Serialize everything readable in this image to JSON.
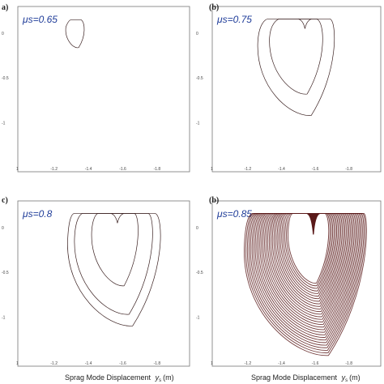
{
  "figure": {
    "xlabel": "Sprag Mode Displacement",
    "xlabel_symbol": "y",
    "xlabel_subscript": "s",
    "xlabel_unit": "(m)"
  },
  "colors": {
    "frame": "#777777",
    "curve": "#3a2020",
    "dense": "#5a1a1a",
    "mu_label": "#1f3c99"
  },
  "chart_data": [
    {
      "type": "line",
      "panel": "a)",
      "annotation": "μs=0.65",
      "xlim": [
        1.0,
        2.0
      ],
      "ylim": [
        -1.55,
        0.3
      ],
      "xticks": [
        "1",
        "-1.2",
        "-1.4",
        "-1.6",
        "-1.8"
      ],
      "yticks": [
        "0",
        "-0.5",
        "-1"
      ],
      "loops": [
        {
          "cx": 1.33,
          "top": 0.15,
          "bottom": -0.16,
          "left": 1.28,
          "right": 1.39,
          "flat_top": [
            1.31,
            1.37
          ]
        }
      ],
      "dense": false
    },
    {
      "type": "line",
      "panel": "(b)",
      "annotation": "μs=0.75",
      "xlim": [
        1.0,
        2.0
      ],
      "ylim": [
        -1.55,
        0.3
      ],
      "xticks": [
        "1",
        "-1.2",
        "-1.4",
        "-1.6",
        "-1.8"
      ],
      "yticks": [
        "0",
        "-0.5",
        "-1"
      ],
      "loops": [
        {
          "cx": 1.47,
          "top": 0.16,
          "bottom": -0.68,
          "left": 1.34,
          "right": 1.67,
          "flat_top": [
            1.4,
            1.62
          ]
        },
        {
          "cx": 1.47,
          "top": 0.16,
          "bottom": -0.92,
          "left": 1.27,
          "right": 1.74,
          "flat_top": [
            1.33,
            1.7
          ]
        }
      ],
      "notch_x": 1.55,
      "dense": false
    },
    {
      "type": "line",
      "panel": "c)",
      "annotation": "μs=0.8",
      "xlim": [
        1.0,
        2.0
      ],
      "ylim": [
        -1.55,
        0.3
      ],
      "xticks": [
        "1",
        "-1.2",
        "-1.4",
        "-1.6",
        "-1.8"
      ],
      "yticks": [
        "0",
        "-0.5",
        "-1"
      ],
      "loops": [
        {
          "cx": 1.55,
          "top": 0.16,
          "bottom": -0.65,
          "left": 1.43,
          "right": 1.71,
          "flat_top": [
            1.47,
            1.68
          ]
        },
        {
          "cx": 1.55,
          "top": 0.16,
          "bottom": -0.97,
          "left": 1.33,
          "right": 1.8,
          "flat_top": [
            1.38,
            1.76
          ]
        },
        {
          "cx": 1.55,
          "top": 0.16,
          "bottom": -1.1,
          "left": 1.29,
          "right": 1.85,
          "flat_top": [
            1.33,
            1.8
          ]
        }
      ],
      "notch_x": 1.58,
      "dense": false
    },
    {
      "type": "scatter",
      "panel": "(b)",
      "annotation": "μs=0.85",
      "xlim": [
        1.0,
        2.0
      ],
      "ylim": [
        -1.55,
        0.3
      ],
      "xticks": [
        "1",
        "-1.2",
        "-1.4",
        "-1.6",
        "-1.8"
      ],
      "yticks": [
        "0",
        "-0.5",
        "-1"
      ],
      "loops": [
        {
          "cx": 1.57,
          "top": 0.16,
          "bottom": -0.62,
          "left": 1.45,
          "right": 1.7,
          "flat_top": [
            1.48,
            1.67
          ]
        },
        {
          "cx": 1.57,
          "top": 0.16,
          "bottom": -1.43,
          "left": 1.19,
          "right": 1.93,
          "flat_top": [
            1.24,
            1.9
          ]
        }
      ],
      "notch_x": 1.6,
      "dense": true
    }
  ]
}
